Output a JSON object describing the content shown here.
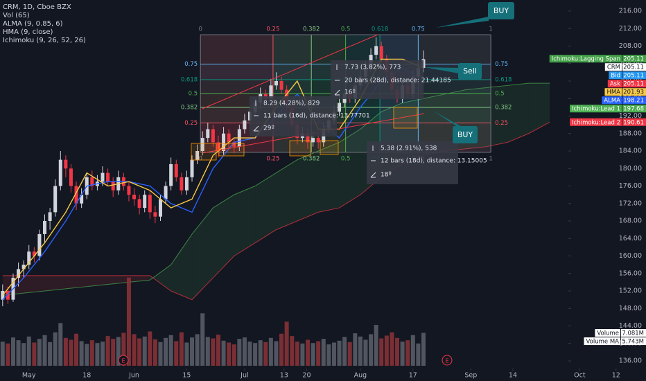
{
  "chart_data": {
    "type": "candlestick",
    "legend": [
      "CRM, 1D, Cboe BZX",
      "Vol (65)",
      "ALMA (9, 0.85, 6)",
      "HMA (9, close)",
      "Ichimoku (9, 26, 52, 26)"
    ],
    "xlim": [
      -0.5,
      122.3
    ],
    "xticks": [
      {
        "value": 5,
        "label": "May"
      },
      {
        "value": 16,
        "label": "18"
      },
      {
        "value": 25,
        "label": "Jun"
      },
      {
        "value": 35,
        "label": "15"
      },
      {
        "value": 46,
        "label": "Jul"
      },
      {
        "value": 53.5,
        "label": "13"
      },
      {
        "value": 57.8,
        "label": "20"
      },
      {
        "value": 68,
        "label": "Aug"
      },
      {
        "value": 78,
        "label": "17"
      },
      {
        "value": 89,
        "label": "Sep"
      },
      {
        "value": 97,
        "label": "14"
      },
      {
        "value": 109.7,
        "label": "Oct"
      },
      {
        "value": 116.6,
        "label": "12"
      }
    ],
    "ylim": [
      136,
      216
    ],
    "yticks": [
      {
        "value": 216,
        "label": "216.00"
      },
      {
        "value": 212,
        "label": "212.00"
      },
      {
        "value": 208,
        "label": "208.00"
      },
      {
        "value": 204,
        "label": "204.00"
      },
      {
        "value": 200,
        "label": "200.00"
      },
      {
        "value": 196,
        "label": "196.00"
      },
      {
        "value": 192,
        "label": "192.00"
      },
      {
        "value": 188,
        "label": "188.00"
      },
      {
        "value": 184,
        "label": "184.00"
      },
      {
        "value": 180,
        "label": "180.00"
      },
      {
        "value": 176,
        "label": "176.00"
      },
      {
        "value": 172,
        "label": "172.00"
      },
      {
        "value": 168,
        "label": "168.00"
      },
      {
        "value": 164,
        "label": "164.00"
      },
      {
        "value": 160,
        "label": "160.00"
      },
      {
        "value": 156,
        "label": "156.00"
      },
      {
        "value": 152,
        "label": "152.00"
      },
      {
        "value": 148,
        "label": "148.00"
      },
      {
        "value": 144,
        "label": "144.00"
      },
      {
        "value": 140,
        "label": "140.00"
      },
      {
        "value": 136,
        "label": "136.00"
      }
    ],
    "up_color": "#d1d4dc",
    "down_color": "#f23645",
    "ohlc": [
      [
        150,
        153.5,
        148.5,
        152
      ],
      [
        152,
        153,
        149,
        150
      ],
      [
        150,
        156,
        149.5,
        155
      ],
      [
        155,
        158.5,
        153,
        157
      ],
      [
        157,
        159,
        155,
        158
      ],
      [
        158,
        162.5,
        157,
        161
      ],
      [
        161,
        162,
        158.5,
        160
      ],
      [
        160,
        166,
        159,
        165
      ],
      [
        165,
        169.5,
        163,
        168
      ],
      [
        168,
        171,
        166,
        170
      ],
      [
        170,
        177.5,
        169,
        176
      ],
      [
        176,
        184,
        175,
        182
      ],
      [
        182,
        183,
        178,
        180
      ],
      [
        180,
        181,
        174.5,
        176
      ],
      [
        176,
        177,
        170.5,
        172
      ],
      [
        172,
        175.5,
        171,
        174
      ],
      [
        174,
        179,
        173,
        178
      ],
      [
        178,
        179.5,
        175,
        176
      ],
      [
        176,
        178.5,
        175,
        177
      ],
      [
        177,
        180.5,
        176,
        179
      ],
      [
        179,
        180,
        176,
        177
      ],
      [
        177,
        178,
        173.5,
        175
      ],
      [
        175,
        179.5,
        174,
        178
      ],
      [
        178,
        179,
        175,
        176
      ],
      [
        176,
        177,
        172.5,
        174
      ],
      [
        174,
        175.5,
        171.5,
        173
      ],
      [
        173,
        174,
        169.5,
        171
      ],
      [
        171,
        175,
        170,
        174
      ],
      [
        174,
        175,
        168.5,
        170
      ],
      [
        170,
        171.5,
        167.5,
        169
      ],
      [
        169,
        174,
        168,
        173
      ],
      [
        173,
        177,
        172,
        176
      ],
      [
        176,
        182.5,
        175,
        181
      ],
      [
        181,
        182,
        177,
        178
      ],
      [
        178,
        179,
        174,
        175
      ],
      [
        175,
        179.5,
        174,
        178
      ],
      [
        178,
        183,
        177,
        182
      ],
      [
        182,
        185.5,
        181,
        184
      ],
      [
        184,
        188.5,
        183,
        187
      ],
      [
        187,
        190.5,
        186,
        189
      ],
      [
        189,
        190,
        185,
        186
      ],
      [
        186,
        187.5,
        182.5,
        184
      ],
      [
        184,
        189.5,
        183,
        188
      ],
      [
        188,
        189,
        184.5,
        186
      ],
      [
        186,
        187,
        183.5,
        185
      ],
      [
        185,
        190,
        184,
        189
      ],
      [
        189,
        192.5,
        188,
        191
      ],
      [
        191,
        194,
        190,
        193
      ],
      [
        193,
        196,
        192,
        195
      ],
      [
        195,
        198.5,
        194,
        197
      ],
      [
        197,
        198,
        195,
        196
      ],
      [
        196,
        200.5,
        195,
        199
      ],
      [
        199,
        202,
        198,
        200
      ],
      [
        200,
        201,
        197,
        198
      ],
      [
        198,
        199,
        193,
        194
      ],
      [
        194,
        195,
        189,
        190
      ],
      [
        190,
        191,
        185.5,
        187
      ],
      [
        187,
        189.5,
        186,
        188
      ],
      [
        188,
        189,
        184.5,
        186
      ],
      [
        186,
        188.5,
        185,
        187
      ],
      [
        187,
        188,
        184.5,
        186
      ],
      [
        186,
        190.5,
        185,
        189
      ],
      [
        189,
        192,
        188,
        191
      ],
      [
        191,
        194.5,
        190,
        193
      ],
      [
        193,
        196.5,
        192,
        195
      ],
      [
        195,
        198,
        194,
        197
      ],
      [
        197,
        198,
        195,
        196
      ],
      [
        196,
        200,
        195,
        199
      ],
      [
        199,
        202.5,
        198,
        201
      ],
      [
        201,
        204.5,
        200,
        203
      ],
      [
        203,
        207.5,
        202,
        206
      ],
      [
        206,
        210,
        205,
        208
      ],
      [
        208,
        209,
        204,
        205
      ],
      [
        205,
        206,
        201,
        202
      ],
      [
        202,
        203,
        197,
        198
      ],
      [
        198,
        199,
        195,
        196
      ],
      [
        196,
        200.5,
        195,
        199
      ],
      [
        199,
        200,
        196,
        197
      ],
      [
        197,
        202.5,
        196,
        201
      ],
      [
        201,
        204.5,
        200,
        203
      ],
      [
        203,
        207,
        202,
        205
      ]
    ],
    "volume": {
      "values": [
        5.2,
        4.8,
        6.1,
        5.5,
        4.9,
        6.3,
        5.0,
        5.8,
        6.6,
        5.1,
        7.2,
        9.2,
        6.0,
        5.6,
        6.9,
        5.3,
        4.7,
        5.5,
        4.9,
        5.2,
        6.4,
        5.8,
        6.2,
        7.1,
        19.0,
        6.8,
        5.9,
        6.3,
        7.4,
        5.7,
        5.1,
        6.0,
        6.6,
        5.3,
        7.2,
        5.0,
        6.1,
        6.8,
        11.3,
        6.2,
        5.9,
        6.7,
        5.4,
        5.0,
        4.6,
        5.8,
        6.1,
        5.2,
        4.9,
        5.5,
        5.1,
        6.0,
        5.3,
        6.9,
        9.5,
        6.4,
        5.2,
        4.8,
        5.6,
        4.9,
        5.3,
        5.8,
        4.6,
        5.0,
        5.4,
        6.2,
        5.1,
        7.0,
        6.3,
        5.6,
        6.8,
        8.8,
        5.9,
        6.5,
        7.2,
        6.0,
        5.2,
        5.5,
        6.6,
        4.8,
        7.081
      ],
      "ylim": [
        0,
        20
      ],
      "up_color": "#5d606b",
      "down_color": "#8e3438"
    },
    "lines": [
      {
        "color": "#2962ff",
        "x": [
          0,
          4,
          8,
          12,
          16,
          20,
          24,
          28,
          32,
          36,
          40,
          44,
          48,
          52,
          56,
          60,
          64,
          68,
          72,
          76,
          80
        ],
        "values": [
          150,
          155,
          161,
          168,
          176,
          177,
          177,
          176,
          172,
          170,
          180,
          186,
          187,
          192,
          197,
          191,
          187,
          194,
          200,
          203,
          200
        ]
      },
      {
        "color": "#f7c948",
        "x": [
          0,
          4,
          8,
          12,
          16,
          20,
          24,
          28,
          32,
          36,
          40,
          44,
          48,
          52,
          56,
          60,
          64,
          68,
          72,
          76,
          80
        ],
        "values": [
          151,
          157,
          163,
          170,
          179,
          176,
          177,
          175,
          171,
          173,
          183,
          187,
          187,
          194,
          200,
          189,
          189,
          196,
          205,
          205,
          203
        ]
      }
    ],
    "ichimoku": {
      "x": [
        0,
        4,
        8,
        12,
        16,
        20,
        24,
        28,
        32,
        36,
        40,
        44,
        48,
        52,
        56,
        60,
        64,
        68,
        72,
        76,
        80,
        84,
        88,
        92,
        96,
        100,
        104
      ],
      "lead1": [
        151,
        151.5,
        152,
        152.5,
        153,
        153.5,
        154,
        154.5,
        158,
        165,
        171,
        174,
        176,
        179,
        182,
        184,
        186,
        189,
        193,
        195,
        196,
        197,
        198,
        198.5,
        199,
        199.5,
        199.5
      ],
      "lead2": [
        155.5,
        155.5,
        155.5,
        155.5,
        155.5,
        155.5,
        155.5,
        155.5,
        152,
        150,
        155,
        160,
        163,
        166,
        168,
        170,
        171,
        174,
        178,
        181,
        183,
        184,
        184.5,
        185,
        186,
        188,
        190.6
      ],
      "lead1_color": "#4caf50",
      "lead2_color": "#f23645"
    },
    "fib": {
      "levels": [
        0,
        0.25,
        0.382,
        0.5,
        0.618,
        0.75,
        1
      ],
      "colors": [
        "#787b86",
        "#f7525f",
        "#81c784",
        "#4caf50",
        "#089981",
        "#64b5f6",
        "#787b86"
      ],
      "price_range": [
        183.7,
        210.6
      ],
      "index_range": [
        37.6,
        92.8
      ]
    },
    "price_tags": [
      {
        "name": "Ichimoku:Lagging Span",
        "value": 205.11,
        "color": "#43a047",
        "text_color": "#ffffff"
      },
      {
        "name": "CRM",
        "value": 205.11,
        "color": "#ffffff",
        "text_color": "#131722"
      },
      {
        "name": "Bid",
        "value": 205.11,
        "color": "#2196f3",
        "text_color": "#ffffff"
      },
      {
        "name": "Ask",
        "value": 205.11,
        "color": "#f23645",
        "text_color": "#ffffff"
      },
      {
        "name": "HMA",
        "value": 201.93,
        "color": "#f7c948",
        "text_color": "#131722"
      },
      {
        "name": "ALMA",
        "value": 198.21,
        "color": "#2962ff",
        "text_color": "#ffffff"
      },
      {
        "name": "Ichimoku:Lead 1",
        "value": 197.68,
        "color": "#4caf50",
        "text_color": "#ffffff"
      },
      {
        "name": "Ichimoku:Lead 2",
        "value": 190.61,
        "color": "#f23645",
        "text_color": "#ffffff"
      }
    ],
    "volume_tags": [
      {
        "name": "Volume",
        "value": 7.081,
        "label": "7.081M"
      },
      {
        "name": "Volume MA",
        "value": 5.743,
        "label": "5.743M"
      }
    ],
    "measurements": [
      {
        "change": "8.29 (4.28%), 829",
        "bars": "11 bars (16d), distance: 13.77701",
        "angle": "29º"
      },
      {
        "change": "7.73 (3.82%), 773",
        "bars": "20 bars (28d), distance: 21.44185",
        "angle": "16º"
      },
      {
        "change": "5.38 (2.91%), 538",
        "bars": "12 bars (18d), distance: 13.15005",
        "angle": "18º"
      }
    ],
    "callouts": [
      "BUY",
      "Sell",
      "BUY"
    ],
    "events": [
      "E",
      "E"
    ]
  }
}
